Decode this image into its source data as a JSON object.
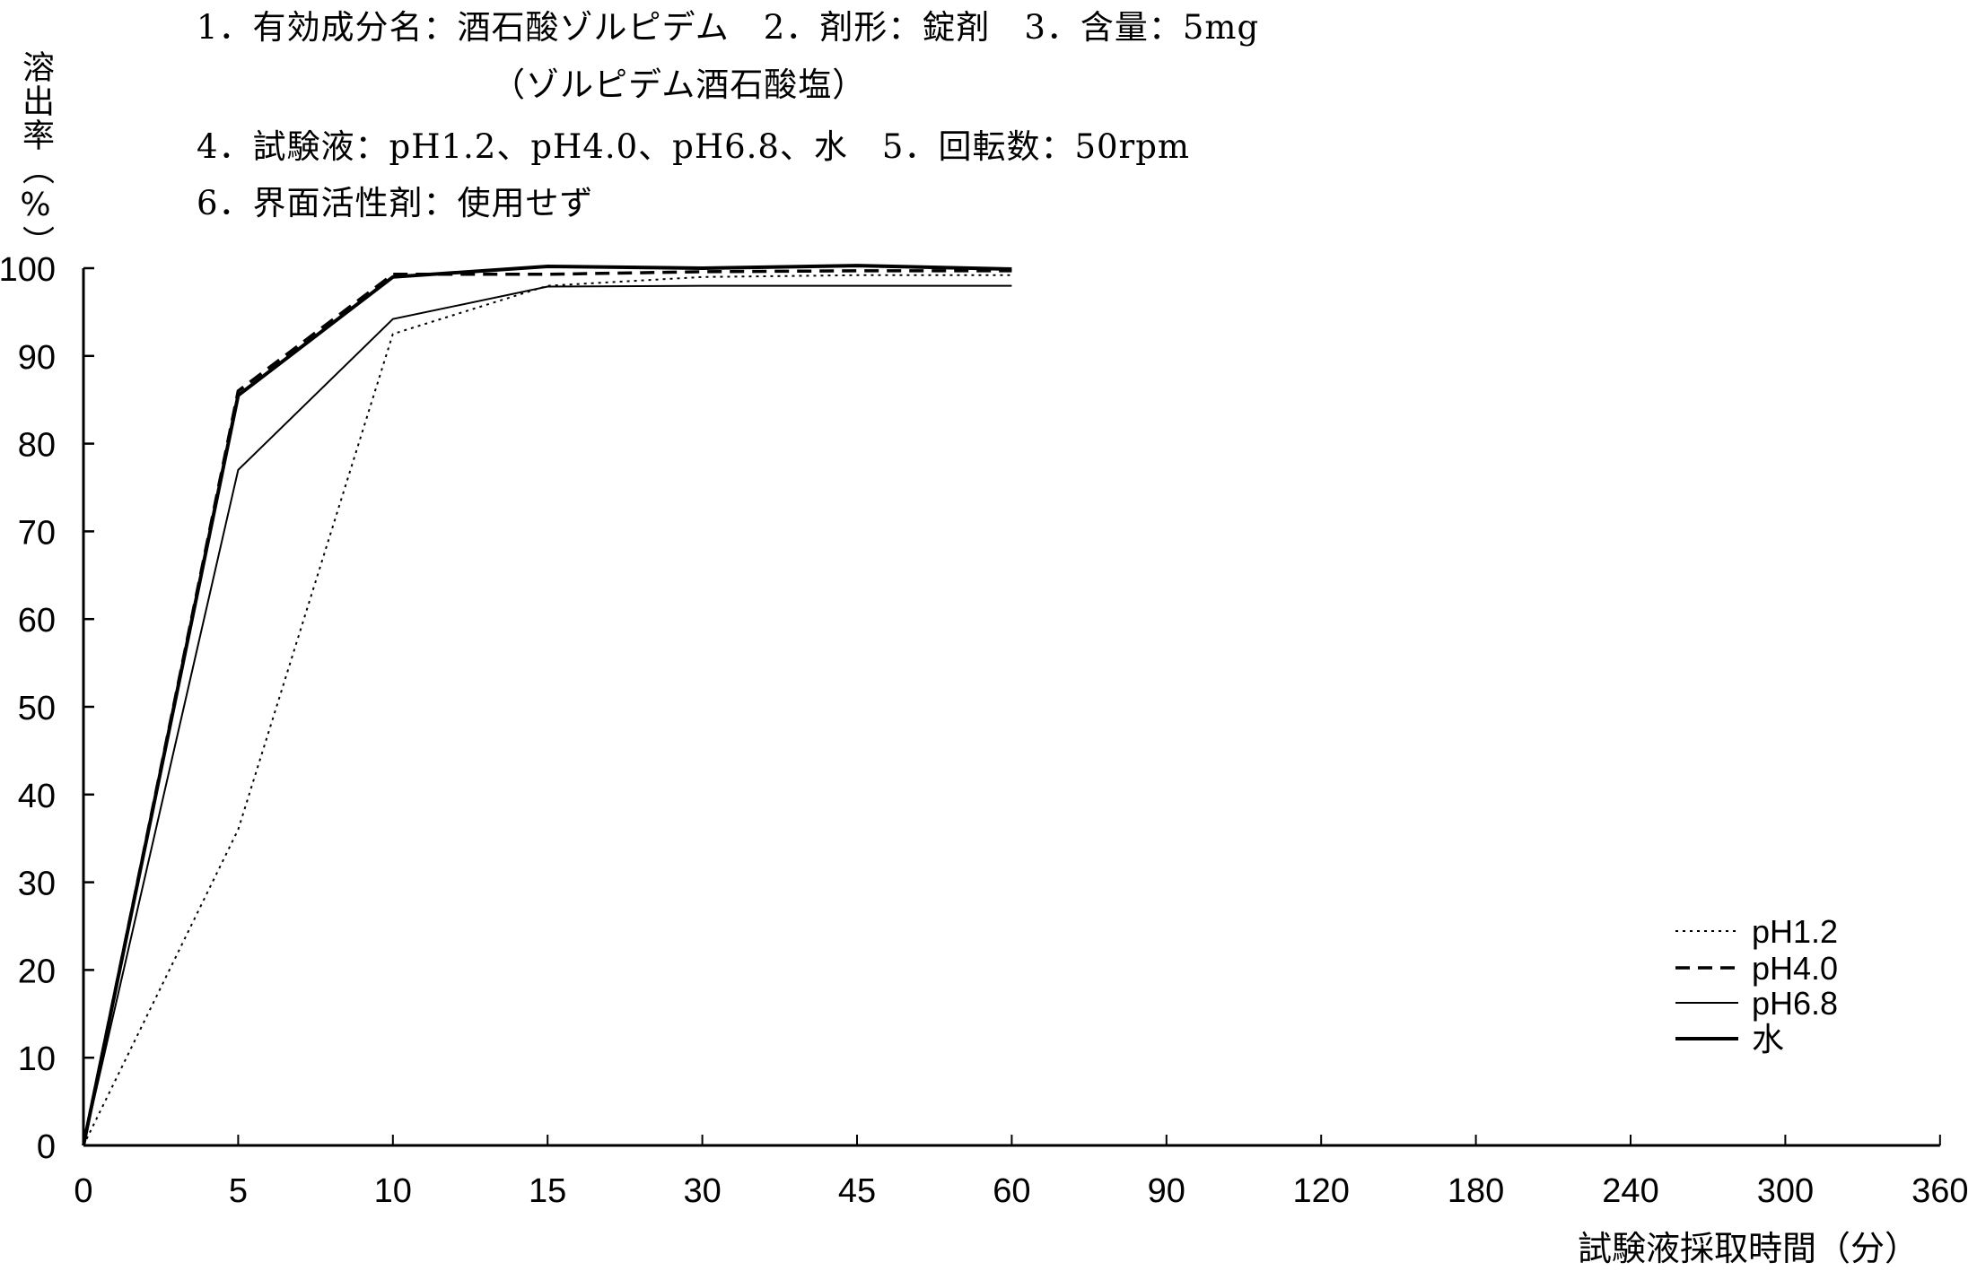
{
  "header": {
    "line1": "1．有効成分名：酒石酸ゾルピデム　2．剤形：錠剤　3．含量：5mg",
    "line2": "（ゾルピデム酒石酸塩）",
    "line3": "4．試験液：pH1.2、pH4.0、pH6.8、水　5．回転数：50rpm",
    "line4": "6．界面活性剤：使用せず"
  },
  "chart_data": {
    "type": "line",
    "title": "",
    "xlabel": "試験液採取時間（分）",
    "ylabel": "溶出率（%）",
    "x_ticks": [
      "0",
      "5",
      "10",
      "15",
      "30",
      "45",
      "60",
      "90",
      "120",
      "180",
      "240",
      "300",
      "360"
    ],
    "y_ticks": [
      "0",
      "10",
      "20",
      "30",
      "40",
      "50",
      "60",
      "70",
      "80",
      "90",
      "100"
    ],
    "ylim": [
      0,
      100
    ],
    "grid": false,
    "legend_position": "lower right",
    "x": [
      "0",
      "5",
      "10",
      "15",
      "30",
      "45",
      "60"
    ],
    "series": [
      {
        "name": "pH1.2",
        "style": "dotted",
        "values": [
          0,
          36,
          92.5,
          98,
          99,
          99.2,
          99.2
        ]
      },
      {
        "name": "pH4.0",
        "style": "dashed",
        "values": [
          0,
          86,
          99.3,
          99.3,
          99.6,
          99.7,
          99.7
        ]
      },
      {
        "name": "pH6.8",
        "style": "thin-solid",
        "values": [
          0,
          77,
          94.2,
          97.9,
          98,
          98,
          98
        ]
      },
      {
        "name": "水",
        "style": "thick-solid",
        "values": [
          0,
          85.5,
          99,
          100.2,
          100,
          100.3,
          99.9
        ]
      }
    ]
  }
}
